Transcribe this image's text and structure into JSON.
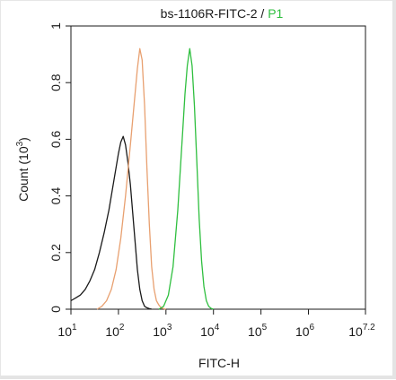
{
  "chart_data": {
    "type": "line",
    "title": "bs-1106R-FITC-2",
    "title_separator": " / ",
    "title_gate": "P1",
    "xlabel": "FITC-H",
    "ylabel": "Count (10³)",
    "ylabel_parts": {
      "base": "Count (10",
      "exp": "3",
      "close": ")"
    },
    "x_scale": "log",
    "xlim": [
      10,
      15848931.9
    ],
    "ylim": [
      0,
      1.0
    ],
    "x_ticks": [
      {
        "value": 10,
        "base": "10",
        "exp": "1"
      },
      {
        "value": 100,
        "base": "10",
        "exp": "2"
      },
      {
        "value": 1000,
        "base": "10",
        "exp": "3"
      },
      {
        "value": 10000,
        "base": "10",
        "exp": "4"
      },
      {
        "value": 100000,
        "base": "10",
        "exp": "5"
      },
      {
        "value": 1000000,
        "base": "10",
        "exp": "6"
      },
      {
        "value": 15848931.9,
        "base": "10",
        "exp": "7.2"
      }
    ],
    "y_ticks": [
      {
        "value": 0,
        "label": "0"
      },
      {
        "value": 0.2,
        "label": "0.2"
      },
      {
        "value": 0.4,
        "label": "0.4"
      },
      {
        "value": 0.6,
        "label": "0.6"
      },
      {
        "value": 0.8,
        "label": "0.8"
      },
      {
        "value": 1.0,
        "label": "1"
      }
    ],
    "grid": false,
    "series": [
      {
        "color": "#1a1a1a",
        "x": [
          10,
          12.6,
          15.8,
          20,
          25.1,
          31.6,
          39.8,
          50.1,
          63.1,
          79.4,
          100,
          112,
          126,
          141,
          158,
          178,
          200,
          224,
          251,
          282,
          316,
          355,
          398,
          447,
          501
        ],
        "y": [
          0.03,
          0.04,
          0.05,
          0.07,
          0.1,
          0.14,
          0.2,
          0.27,
          0.35,
          0.45,
          0.55,
          0.59,
          0.61,
          0.58,
          0.52,
          0.44,
          0.34,
          0.24,
          0.14,
          0.07,
          0.03,
          0.01,
          0.005,
          0.002,
          0
        ]
      },
      {
        "color": "#e8a070",
        "x": [
          35.5,
          44.7,
          56.2,
          70.8,
          89.1,
          112,
          141,
          178,
          200,
          224,
          251,
          282,
          316,
          355,
          398,
          447,
          501,
          562,
          631,
          708,
          794,
          891,
          1000
        ],
        "y": [
          0,
          0.01,
          0.03,
          0.07,
          0.14,
          0.25,
          0.4,
          0.58,
          0.67,
          0.76,
          0.85,
          0.92,
          0.88,
          0.72,
          0.5,
          0.3,
          0.15,
          0.07,
          0.03,
          0.015,
          0.005,
          0.002,
          0
        ]
      },
      {
        "color": "#2fbf3f",
        "x": [
          708,
          891,
          1122,
          1413,
          1778,
          2239,
          2512,
          2818,
          3162,
          3548,
          3981,
          4467,
          5012,
          5623,
          6310,
          7079,
          7943,
          8913,
          10000
        ],
        "y": [
          0,
          0.01,
          0.05,
          0.15,
          0.35,
          0.62,
          0.76,
          0.86,
          0.92,
          0.86,
          0.72,
          0.52,
          0.32,
          0.17,
          0.08,
          0.03,
          0.01,
          0.003,
          0
        ]
      }
    ],
    "colors": {
      "title_gate": "#2fbf3f",
      "axis": "#1a1a1a"
    }
  }
}
